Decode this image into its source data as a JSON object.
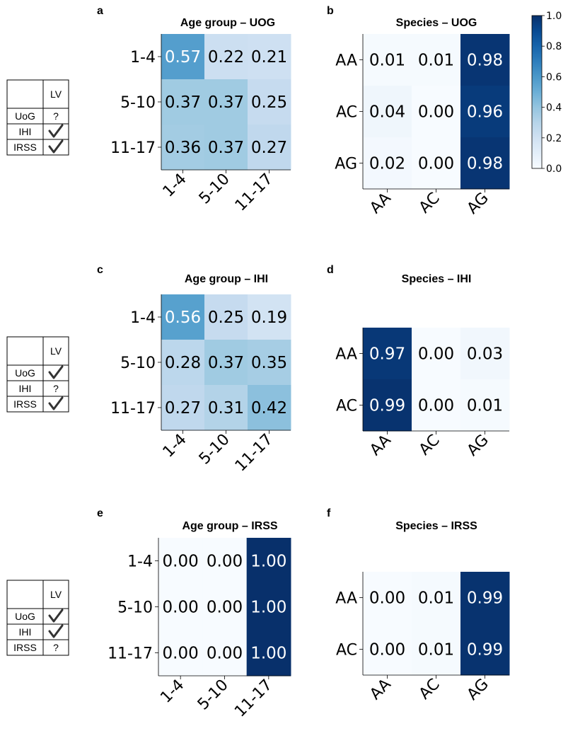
{
  "colors": {
    "cmap_low": "#f7fbff",
    "cmap_high": "#08306b",
    "axis": "#000000"
  },
  "legend_tables": [
    {
      "header": [
        "",
        "LV"
      ],
      "rows": [
        [
          "UoG",
          "?"
        ],
        [
          "IHI",
          "check-icon"
        ],
        [
          "IRSS",
          "check-icon"
        ]
      ]
    },
    {
      "header": [
        "",
        "LV"
      ],
      "rows": [
        [
          "UoG",
          "check-icon"
        ],
        [
          "IHI",
          "?"
        ],
        [
          "IRSS",
          "check-icon"
        ]
      ]
    },
    {
      "header": [
        "",
        "LV"
      ],
      "rows": [
        [
          "UoG",
          "check-icon"
        ],
        [
          "IHI",
          "check-icon"
        ],
        [
          "IRSS",
          "?"
        ]
      ]
    }
  ],
  "colorbar": {
    "ticks": [
      "0.0",
      "0.2",
      "0.4",
      "0.6",
      "0.8",
      "1.0"
    ],
    "range": [
      0,
      1
    ]
  },
  "chart_data": [
    {
      "type": "heatmap",
      "panel": "a",
      "title": "Age group – UOG",
      "rows": [
        "1-4",
        "5-10",
        "11-17"
      ],
      "cols": [
        "1-4",
        "5-10",
        "11-17"
      ],
      "values": [
        [
          0.57,
          0.22,
          0.21
        ],
        [
          0.37,
          0.37,
          0.25
        ],
        [
          0.36,
          0.37,
          0.27
        ]
      ],
      "labels": [
        [
          "0.57",
          "0.22",
          "0.21"
        ],
        [
          "0.37",
          "0.37",
          "0.25"
        ],
        [
          "0.36",
          "0.37",
          "0.27"
        ]
      ],
      "range": [
        0,
        1
      ]
    },
    {
      "type": "heatmap",
      "panel": "b",
      "title": "Species – UOG",
      "rows": [
        "AA",
        "AC",
        "AG"
      ],
      "cols": [
        "AA",
        "AC",
        "AG"
      ],
      "values": [
        [
          0.01,
          0.01,
          0.98
        ],
        [
          0.04,
          0.0,
          0.96
        ],
        [
          0.02,
          0.0,
          0.98
        ]
      ],
      "labels": [
        [
          "0.01",
          "0.01",
          "0.98"
        ],
        [
          "0.04",
          "0.00",
          "0.96"
        ],
        [
          "0.02",
          "0.00",
          "0.98"
        ]
      ],
      "range": [
        0,
        1
      ]
    },
    {
      "type": "heatmap",
      "panel": "c",
      "title": "Age group – IHI",
      "rows": [
        "1-4",
        "5-10",
        "11-17"
      ],
      "cols": [
        "1-4",
        "5-10",
        "11-17"
      ],
      "values": [
        [
          0.56,
          0.25,
          0.19
        ],
        [
          0.28,
          0.37,
          0.35
        ],
        [
          0.27,
          0.31,
          0.42
        ]
      ],
      "labels": [
        [
          "0.56",
          "0.25",
          "0.19"
        ],
        [
          "0.28",
          "0.37",
          "0.35"
        ],
        [
          "0.27",
          "0.31",
          "0.42"
        ]
      ],
      "range": [
        0,
        1
      ]
    },
    {
      "type": "heatmap",
      "panel": "d",
      "title": "Species – IHI",
      "rows": [
        "AA",
        "AC"
      ],
      "cols": [
        "AA",
        "AC",
        "AG"
      ],
      "values": [
        [
          0.97,
          0.0,
          0.03
        ],
        [
          0.99,
          0.0,
          0.01
        ]
      ],
      "labels": [
        [
          "0.97",
          "0.00",
          "0.03"
        ],
        [
          "0.99",
          "0.00",
          "0.01"
        ]
      ],
      "range": [
        0,
        1
      ]
    },
    {
      "type": "heatmap",
      "panel": "e",
      "title": "Age group – IRSS",
      "rows": [
        "1-4",
        "5-10",
        "11-17"
      ],
      "cols": [
        "1-4",
        "5-10",
        "11-17"
      ],
      "values": [
        [
          0.0,
          0.0,
          1.0
        ],
        [
          0.0,
          0.0,
          1.0
        ],
        [
          0.0,
          0.0,
          1.0
        ]
      ],
      "labels": [
        [
          "0.00",
          "0.00",
          "1.00"
        ],
        [
          "0.00",
          "0.00",
          "1.00"
        ],
        [
          "0.00",
          "0.00",
          "1.00"
        ]
      ],
      "range": [
        0,
        1
      ]
    },
    {
      "type": "heatmap",
      "panel": "f",
      "title": "Species – IRSS",
      "rows": [
        "AA",
        "AC"
      ],
      "cols": [
        "AA",
        "AC",
        "AG"
      ],
      "values": [
        [
          0.0,
          0.01,
          0.99
        ],
        [
          0.0,
          0.01,
          0.99
        ]
      ],
      "labels": [
        [
          "0.00",
          "0.01",
          "0.99"
        ],
        [
          "0.00",
          "0.01",
          "0.99"
        ]
      ],
      "range": [
        0,
        1
      ]
    }
  ]
}
